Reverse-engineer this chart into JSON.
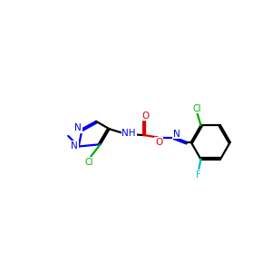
{
  "bg": "#ffffff",
  "C": "#000000",
  "N": "#0000ee",
  "O": "#dd0000",
  "Cl": "#00aa00",
  "F": "#00bbcc",
  "lw": 1.6,
  "fs": 7.5,
  "figsize": [
    3.0,
    3.0
  ],
  "dpi": 100
}
